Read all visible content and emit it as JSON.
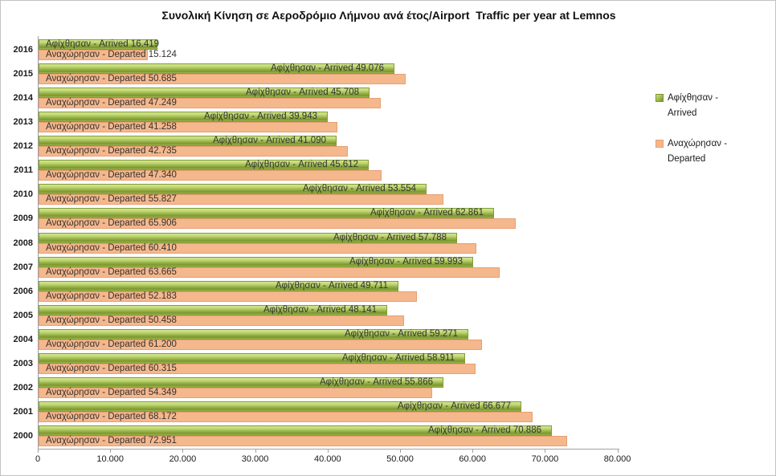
{
  "title": "Συνολική Κίνηση σε Αεροδρόμιο Λήμνου ανά έτος/Airport  Traffic per year at Lemnos",
  "chart_data": {
    "type": "bar",
    "orientation": "horizontal",
    "title": "Συνολική Κίνηση σε Αεροδρόμιο Λήμνου ανά έτος/Airport  Traffic per year at Lemnos",
    "categories": [
      "2016",
      "2015",
      "2014",
      "2013",
      "2012",
      "2011",
      "2010",
      "2009",
      "2008",
      "2007",
      "2006",
      "2005",
      "2004",
      "2003",
      "2002",
      "2001",
      "2000"
    ],
    "series": [
      {
        "name": "Αφίχθησαν - Arrived",
        "color": "#9ab647",
        "values": [
          16419,
          49076,
          45708,
          39943,
          41090,
          45612,
          53554,
          62861,
          57788,
          59993,
          49711,
          48141,
          59271,
          58911,
          55866,
          66677,
          70886
        ]
      },
      {
        "name": "Αναχώρησαν - Departed",
        "color": "#f5b78c",
        "values": [
          15124,
          50685,
          47249,
          41258,
          42735,
          47340,
          55827,
          65906,
          60410,
          63665,
          52183,
          50458,
          61200,
          60315,
          54349,
          68172,
          72951
        ]
      }
    ],
    "xlim": [
      0,
      80000
    ],
    "x_tick_values": [
      0,
      10000,
      20000,
      30000,
      40000,
      50000,
      60000,
      70000,
      80000
    ],
    "x_tick_labels": [
      "0",
      "10.000",
      "20.000",
      "30.000",
      "40.000",
      "50.000",
      "60.000",
      "70.000",
      "80.000"
    ],
    "legend_position": "right",
    "grid": false
  }
}
